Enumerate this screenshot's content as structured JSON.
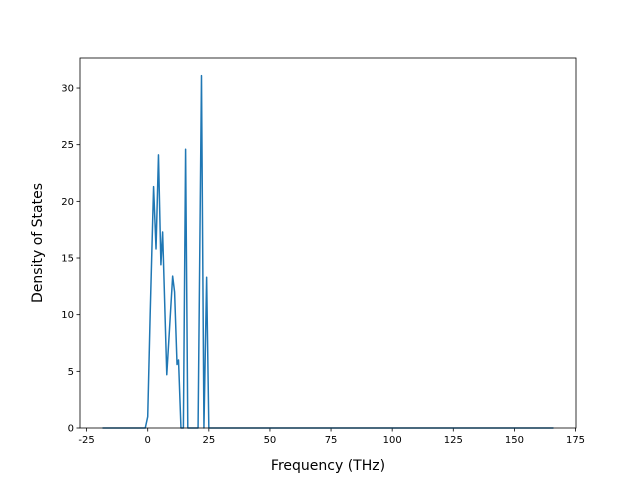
{
  "chart_data": {
    "type": "line",
    "xlabel": "Frequency (THz)",
    "ylabel": "Density of States",
    "x": [
      -18.5,
      -1,
      0,
      1,
      2.4,
      3.4,
      4.4,
      5.4,
      6.1,
      7.8,
      10.2,
      11,
      12,
      12.6,
      13.6,
      14.6,
      15.5,
      16.4,
      20.6,
      22,
      23,
      24.1,
      25,
      166
    ],
    "series": [
      {
        "color": "#1f77b4",
        "values": [
          0,
          0,
          1,
          10,
          21.3,
          15.8,
          24.1,
          14.4,
          17.3,
          4.7,
          13.4,
          12,
          5.6,
          6,
          0,
          0,
          24.6,
          0,
          0,
          31.1,
          0,
          13.3,
          0,
          0
        ]
      }
    ],
    "xlim": [
      -27.7,
      175.2
    ],
    "ylim": [
      0,
      32.65
    ],
    "xticks": [
      -25,
      0,
      25,
      50,
      75,
      100,
      125,
      150,
      175
    ],
    "yticks": [
      0,
      5,
      10,
      15,
      20,
      25,
      30
    ]
  }
}
